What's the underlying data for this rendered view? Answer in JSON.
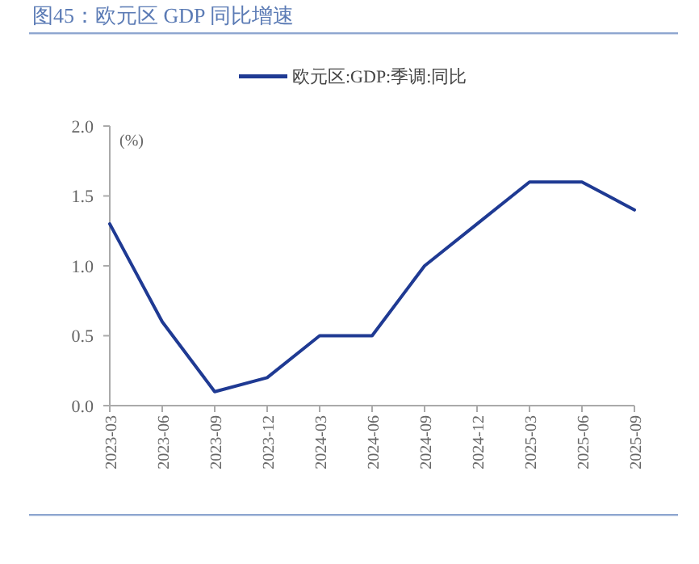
{
  "chart_data": {
    "type": "line",
    "title": "图45：欧元区 GDP 同比增速",
    "ylabel": "(%)",
    "categories": [
      "2023-03",
      "2023-06",
      "2023-09",
      "2023-12",
      "2024-03",
      "2024-06",
      "2024-09",
      "2024-12",
      "2025-03",
      "2025-06",
      "2025-09"
    ],
    "series": [
      {
        "name": "欧元区:GDP:季调:同比",
        "color": "#1f3a93",
        "values": [
          1.3,
          0.6,
          0.1,
          0.2,
          0.5,
          0.5,
          1.0,
          1.3,
          1.6,
          1.6,
          1.4
        ]
      }
    ],
    "ylim": [
      0,
      2
    ],
    "yticks": [
      {
        "value": 0,
        "label": "0.0"
      },
      {
        "value": 0.5,
        "label": "0.5"
      },
      {
        "value": 1,
        "label": "1.0"
      },
      {
        "value": 1.5,
        "label": "1.5"
      },
      {
        "value": 2,
        "label": "2.0"
      }
    ],
    "grid": false,
    "legend": "top",
    "marker": "none",
    "line_style": "solid"
  }
}
